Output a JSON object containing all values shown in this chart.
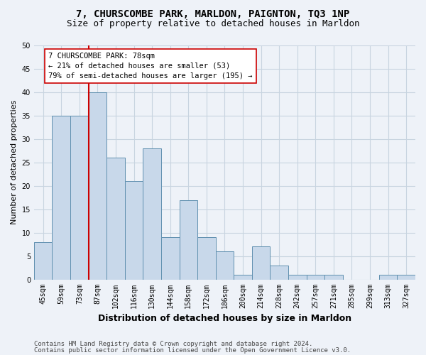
{
  "title": "7, CHURSCOMBE PARK, MARLDON, PAIGNTON, TQ3 1NP",
  "subtitle": "Size of property relative to detached houses in Marldon",
  "xlabel": "Distribution of detached houses by size in Marldon",
  "ylabel": "Number of detached properties",
  "categories": [
    "45sqm",
    "59sqm",
    "73sqm",
    "87sqm",
    "102sqm",
    "116sqm",
    "130sqm",
    "144sqm",
    "158sqm",
    "172sqm",
    "186sqm",
    "200sqm",
    "214sqm",
    "228sqm",
    "242sqm",
    "257sqm",
    "271sqm",
    "285sqm",
    "299sqm",
    "313sqm",
    "327sqm"
  ],
  "values": [
    8,
    35,
    35,
    40,
    26,
    21,
    28,
    9,
    17,
    9,
    6,
    1,
    7,
    3,
    1,
    1,
    1,
    0,
    0,
    1,
    1
  ],
  "bar_color": "#c8d8ea",
  "bar_edge_color": "#6090b0",
  "bar_edge_width": 0.7,
  "vline_color": "#cc0000",
  "vline_x_index": 2.5,
  "annotation_text": "7 CHURSCOMBE PARK: 78sqm\n← 21% of detached houses are smaller (53)\n79% of semi-detached houses are larger (195) →",
  "annotation_box_color": "#ffffff",
  "annotation_box_edge": "#cc0000",
  "ylim": [
    0,
    50
  ],
  "yticks": [
    0,
    5,
    10,
    15,
    20,
    25,
    30,
    35,
    40,
    45,
    50
  ],
  "grid_color": "#c8d4e0",
  "footer1": "Contains HM Land Registry data © Crown copyright and database right 2024.",
  "footer2": "Contains public sector information licensed under the Open Government Licence v3.0.",
  "bg_color": "#eef2f8",
  "title_fontsize": 10,
  "subtitle_fontsize": 9,
  "axis_label_fontsize": 8,
  "tick_fontsize": 7,
  "annotation_fontsize": 7.5,
  "footer_fontsize": 6.5
}
